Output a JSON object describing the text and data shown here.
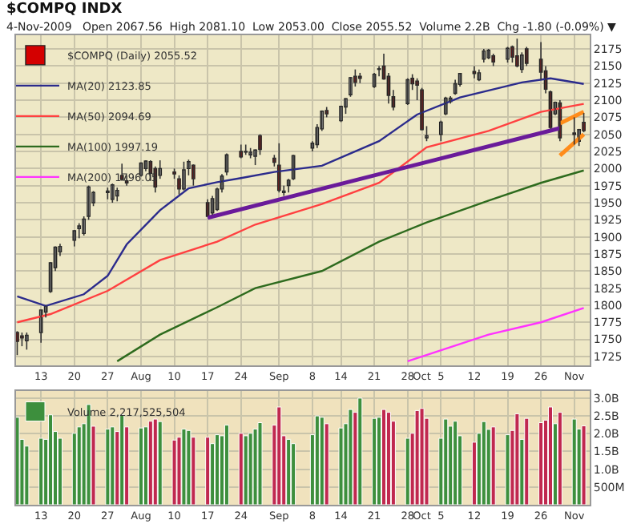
{
  "chart_data": [
    {
      "type": "candlestick",
      "title": "$COMPQ INDX",
      "subtitle": "4-Nov-2009   Open 2067.56  High 2081.10  Low 2053.00  Close 2055.52  Volume 2.2B  Chg -1.80 (-0.09%) ▼",
      "x": [
        "2009-07-08",
        "2009-07-09",
        "2009-07-10",
        "2009-07-13",
        "2009-07-14",
        "2009-07-15",
        "2009-07-16",
        "2009-07-17",
        "2009-07-20",
        "2009-07-21",
        "2009-07-22",
        "2009-07-23",
        "2009-07-24",
        "2009-07-27",
        "2009-07-28",
        "2009-07-29",
        "2009-07-30",
        "2009-07-31",
        "2009-08-03",
        "2009-08-04",
        "2009-08-05",
        "2009-08-06",
        "2009-08-07",
        "2009-08-10",
        "2009-08-11",
        "2009-08-12",
        "2009-08-13",
        "2009-08-14",
        "2009-08-17",
        "2009-08-18",
        "2009-08-19",
        "2009-08-20",
        "2009-08-21",
        "2009-08-24",
        "2009-08-25",
        "2009-08-26",
        "2009-08-27",
        "2009-08-28",
        "2009-08-31",
        "2009-09-01",
        "2009-09-02",
        "2009-09-03",
        "2009-09-04",
        "2009-09-08",
        "2009-09-09",
        "2009-09-10",
        "2009-09-11",
        "2009-09-14",
        "2009-09-15",
        "2009-09-16",
        "2009-09-17",
        "2009-09-18",
        "2009-09-21",
        "2009-09-22",
        "2009-09-23",
        "2009-09-24",
        "2009-09-25",
        "2009-09-28",
        "2009-09-29",
        "2009-09-30",
        "2009-10-01",
        "2009-10-02",
        "2009-10-05",
        "2009-10-06",
        "2009-10-07",
        "2009-10-08",
        "2009-10-09",
        "2009-10-12",
        "2009-10-13",
        "2009-10-14",
        "2009-10-15",
        "2009-10-16",
        "2009-10-19",
        "2009-10-20",
        "2009-10-21",
        "2009-10-22",
        "2009-10-23",
        "2009-10-26",
        "2009-10-27",
        "2009-10-28",
        "2009-10-29",
        "2009-10-30",
        "2009-11-02",
        "2009-11-03",
        "2009-11-04"
      ],
      "series": [
        {
          "name": "MA(20) 2123.85",
          "type": "line",
          "color": "#2b2b8c",
          "x": [
            "2009-07-08",
            "2009-07-14",
            "2009-07-22",
            "2009-07-27",
            "2009-07-31",
            "2009-08-07",
            "2009-08-13",
            "2009-08-19",
            "2009-08-24",
            "2009-08-31",
            "2009-09-10",
            "2009-09-22",
            "2009-09-30",
            "2009-10-09",
            "2009-10-22",
            "2009-10-28",
            "2009-11-04"
          ],
          "values": [
            1813,
            1799,
            1816,
            1843,
            1889,
            1939,
            1971,
            1980,
            1986,
            1995,
            2004,
            2040,
            2079,
            2104,
            2126,
            2132,
            2123.85
          ]
        },
        {
          "name": "MA(50) 2094.69",
          "type": "line",
          "color": "#ff4040",
          "x": [
            "2009-07-08",
            "2009-07-15",
            "2009-07-27",
            "2009-08-07",
            "2009-08-19",
            "2009-08-27",
            "2009-09-10",
            "2009-09-22",
            "2009-10-02",
            "2009-10-15",
            "2009-10-26",
            "2009-11-04"
          ],
          "values": [
            1775,
            1787,
            1821,
            1866,
            1893,
            1918,
            1948,
            1979,
            2031,
            2055,
            2083,
            2094.69
          ]
        },
        {
          "name": "MA(100) 1997.19",
          "type": "line",
          "color": "#2e6b1e",
          "x": [
            "2009-07-29",
            "2009-08-07",
            "2009-08-19",
            "2009-08-27",
            "2009-09-10",
            "2009-09-22",
            "2009-10-02",
            "2009-10-15",
            "2009-10-26",
            "2009-11-04"
          ],
          "values": [
            1718,
            1757,
            1797,
            1825,
            1850,
            1893,
            1921,
            1953,
            1979,
            1997.19
          ]
        },
        {
          "name": "MA(200) 1796.05",
          "type": "line",
          "color": "#ff33ff",
          "x": [
            "2009-09-28",
            "2009-10-15",
            "2009-10-26",
            "2009-11-04"
          ],
          "values": [
            1718,
            1757,
            1775,
            1796.05
          ]
        },
        {
          "type": "line",
          "color": "#6a1b9a",
          "x": [
            "2009-08-17",
            "2009-10-30"
          ],
          "values": [
            1928,
            2059
          ]
        },
        {
          "type": "line",
          "color": "#ff8c1a",
          "x": [
            "2009-10-30",
            "2009-11-04"
          ],
          "values": [
            2066,
            2083
          ]
        },
        {
          "type": "line",
          "color": "#ff8c1a",
          "x": [
            "2009-10-30",
            "2009-11-04"
          ],
          "values": [
            2019,
            2050
          ]
        },
        {
          "name": "$COMPQ (Daily) 2055.52",
          "type": "candlestick",
          "colors": [
            "#d40000",
            "#d40000",
            "#ffffff",
            "#ffffff",
            "#ffffff",
            "#ffffff",
            "#ffffff",
            "#ffffff",
            "#ffffff",
            "#ffffff",
            "#ffffff",
            "#ffffff",
            "#ffffff",
            "#ffffff",
            "#ffffff",
            "#ffffff",
            "#d40000",
            "#d40000",
            "#ffffff",
            "#ffffff",
            "#d40000",
            "#d40000",
            "#ffffff",
            "#d40000",
            "#d40000",
            "#ffffff",
            "#ffffff",
            "#d40000",
            "#d40000",
            "#ffffff",
            "#ffffff",
            "#ffffff",
            "#ffffff",
            "#d40000",
            "#d40000",
            "#ffffff",
            "#ffffff",
            "#d40000",
            "#d40000",
            "#d40000",
            "#ffffff",
            "#ffffff",
            "#ffffff",
            "#ffffff",
            "#ffffff",
            "#ffffff",
            "#d40000",
            "#ffffff",
            "#ffffff",
            "#ffffff",
            "#d40000",
            "#d40000",
            "#ffffff",
            "#ffffff",
            "#d40000",
            "#d40000",
            "#d40000",
            "#ffffff",
            "#d40000",
            "#d40000",
            "#d40000",
            "#ffffff",
            "#ffffff",
            "#ffffff",
            "#ffffff",
            "#ffffff",
            "#ffffff",
            "#d40000",
            "#ffffff",
            "#ffffff",
            "#ffffff",
            "#d40000",
            "#ffffff",
            "#d40000",
            "#d40000",
            "#ffffff",
            "#d40000",
            "#d40000",
            "#d40000",
            "#d40000",
            "#ffffff",
            "#d40000",
            "#d40000",
            "#ffffff",
            "#d40000"
          ],
          "ohlc": [
            [
              1760,
              1762,
              1727,
              1747
            ],
            [
              1755,
              1760,
              1740,
              1752
            ],
            [
              1748,
              1760,
              1735,
              1756
            ],
            [
              1760,
              1793,
              1745,
              1793
            ],
            [
              1790,
              1800,
              1782,
              1799
            ],
            [
              1820,
              1863,
              1818,
              1862
            ],
            [
              1855,
              1886,
              1850,
              1885
            ],
            [
              1878,
              1890,
              1872,
              1886
            ],
            [
              1895,
              1910,
              1886,
              1909
            ],
            [
              1912,
              1920,
              1898,
              1916
            ],
            [
              1905,
              1930,
              1902,
              1926
            ],
            [
              1930,
              1975,
              1925,
              1973
            ],
            [
              1950,
              1967,
              1945,
              1965
            ],
            [
              1965,
              1972,
              1955,
              1967
            ],
            [
              1955,
              1978,
              1950,
              1976
            ],
            [
              1960,
              1972,
              1952,
              1968
            ],
            [
              1990,
              2007,
              1982,
              1984
            ],
            [
              1982,
              1990,
              1975,
              1979
            ],
            [
              1990,
              2009,
              1988,
              2008
            ],
            [
              2000,
              2012,
              1996,
              2011
            ],
            [
              2010,
              2012,
              1982,
              1993
            ],
            [
              2000,
              2003,
              1965,
              1973
            ],
            [
              1990,
              2012,
              1985,
              2000
            ],
            [
              1995,
              2000,
              1985,
              1992
            ],
            [
              1985,
              1990,
              1962,
              1970
            ],
            [
              1970,
              2010,
              1968,
              1998
            ],
            [
              2000,
              2013,
              1990,
              2010
            ],
            [
              2005,
              2006,
              1975,
              1985
            ],
            [
              1950,
              1955,
              1930,
              1930
            ],
            [
              1935,
              1960,
              1932,
              1956
            ],
            [
              1940,
              1972,
              1938,
              1970
            ],
            [
              1970,
              1992,
              1965,
              1989
            ],
            [
              1995,
              2022,
              1990,
              2020
            ],
            [
              2025,
              2035,
              2015,
              2017
            ],
            [
              2025,
              2035,
              2020,
              2024
            ],
            [
              2020,
              2030,
              2015,
              2024
            ],
            [
              2018,
              2028,
              2005,
              2027
            ],
            [
              2048,
              2050,
              2020,
              2028
            ],
            [
              2015,
              2020,
              2003,
              2009
            ],
            [
              2005,
              2037,
              1965,
              1968
            ],
            [
              1965,
              1975,
              1960,
              1967
            ],
            [
              1975,
              1985,
              1965,
              1983
            ],
            [
              1985,
              2020,
              1983,
              2019
            ],
            [
              2030,
              2040,
              2025,
              2037
            ],
            [
              2035,
              2065,
              2030,
              2060
            ],
            [
              2058,
              2085,
              2055,
              2084
            ],
            [
              2085,
              2090,
              2075,
              2080
            ],
            [
              2070,
              2092,
              2068,
              2091
            ],
            [
              2090,
              2103,
              2080,
              2102
            ],
            [
              2108,
              2134,
              2105,
              2133
            ],
            [
              2135,
              2145,
              2120,
              2126
            ],
            [
              2135,
              2140,
              2125,
              2132
            ],
            [
              2120,
              2140,
              2118,
              2138
            ],
            [
              2145,
              2150,
              2135,
              2146
            ],
            [
              2150,
              2168,
              2130,
              2131
            ],
            [
              2135,
              2140,
              2095,
              2107
            ],
            [
              2105,
              2115,
              2085,
              2090
            ],
            [
              2095,
              2132,
              2093,
              2130
            ],
            [
              2132,
              2138,
              2115,
              2124
            ],
            [
              2128,
              2132,
              2100,
              2122
            ],
            [
              2115,
              2118,
              2056,
              2057
            ],
            [
              2045,
              2062,
              2040,
              2048
            ],
            [
              2050,
              2070,
              2040,
              2068
            ],
            [
              2080,
              2105,
              2078,
              2103
            ],
            [
              2098,
              2106,
              2095,
              2103
            ],
            [
              2110,
              2130,
              2108,
              2124
            ],
            [
              2123,
              2140,
              2120,
              2139
            ],
            [
              2142,
              2150,
              2132,
              2139
            ],
            [
              2130,
              2145,
              2128,
              2140
            ],
            [
              2160,
              2175,
              2155,
              2172
            ],
            [
              2162,
              2175,
              2160,
              2173
            ],
            [
              2165,
              2168,
              2150,
              2156
            ],
            [
              2160,
              2178,
              2155,
              2176
            ],
            [
              2178,
              2180,
              2155,
              2163
            ],
            [
              2165,
              2190,
              2148,
              2150
            ],
            [
              2145,
              2170,
              2140,
              2166
            ],
            [
              2175,
              2178,
              2150,
              2154
            ],
            [
              2160,
              2185,
              2130,
              2141
            ],
            [
              2143,
              2150,
              2110,
              2116
            ],
            [
              2112,
              2114,
              2058,
              2060
            ],
            [
              2080,
              2098,
              2078,
              2097
            ],
            [
              2096,
              2100,
              2040,
              2045
            ],
            [
              2052,
              2075,
              2035,
              2050
            ],
            [
              2040,
              2058,
              2033,
              2057
            ],
            [
              2067.56,
              2081.1,
              2053.0,
              2055.52
            ]
          ]
        }
      ],
      "xlim": [
        "2009-07-07T18:00",
        "2009-11-05T06:00"
      ],
      "xticks": [
        {
          "value": "2009-07-13",
          "label": "13"
        },
        {
          "value": "2009-07-20",
          "label": "20"
        },
        {
          "value": "2009-07-27",
          "label": "27"
        },
        {
          "value": "2009-08-03",
          "label": "Aug"
        },
        {
          "value": "2009-08-10",
          "label": "10"
        },
        {
          "value": "2009-08-17",
          "label": "17"
        },
        {
          "value": "2009-08-24",
          "label": "24"
        },
        {
          "value": "2009-09-01",
          "label": "Sep"
        },
        {
          "value": "2009-09-08",
          "label": "8"
        },
        {
          "value": "2009-09-14",
          "label": "14"
        },
        {
          "value": "2009-09-21",
          "label": "21"
        },
        {
          "value": "2009-09-28",
          "label": "28"
        },
        {
          "value": "2009-10-01",
          "label": "Oct"
        },
        {
          "value": "2009-10-05",
          "label": "5"
        },
        {
          "value": "2009-10-12",
          "label": "12"
        },
        {
          "value": "2009-10-19",
          "label": "19"
        },
        {
          "value": "2009-10-26",
          "label": "26"
        },
        {
          "value": "2009-11-02",
          "label": "Nov"
        }
      ],
      "ylim": [
        1712,
        2195
      ],
      "yticks": [
        1725,
        1750,
        1775,
        1800,
        1825,
        1850,
        1875,
        1900,
        1925,
        1950,
        1975,
        2000,
        2025,
        2050,
        2075,
        2100,
        2125,
        2150,
        2175
      ],
      "grid": true,
      "legend": "top left"
    },
    {
      "type": "bar",
      "x": [
        "2009-07-08",
        "2009-07-09",
        "2009-07-10",
        "2009-07-13",
        "2009-07-14",
        "2009-07-15",
        "2009-07-16",
        "2009-07-17",
        "2009-07-20",
        "2009-07-21",
        "2009-07-22",
        "2009-07-23",
        "2009-07-24",
        "2009-07-27",
        "2009-07-28",
        "2009-07-29",
        "2009-07-30",
        "2009-07-31",
        "2009-08-03",
        "2009-08-04",
        "2009-08-05",
        "2009-08-06",
        "2009-08-07",
        "2009-08-10",
        "2009-08-11",
        "2009-08-12",
        "2009-08-13",
        "2009-08-14",
        "2009-08-17",
        "2009-08-18",
        "2009-08-19",
        "2009-08-20",
        "2009-08-21",
        "2009-08-24",
        "2009-08-25",
        "2009-08-26",
        "2009-08-27",
        "2009-08-28",
        "2009-08-31",
        "2009-09-01",
        "2009-09-02",
        "2009-09-03",
        "2009-09-04",
        "2009-09-08",
        "2009-09-09",
        "2009-09-10",
        "2009-09-11",
        "2009-09-14",
        "2009-09-15",
        "2009-09-16",
        "2009-09-17",
        "2009-09-18",
        "2009-09-21",
        "2009-09-22",
        "2009-09-23",
        "2009-09-24",
        "2009-09-25",
        "2009-09-28",
        "2009-09-29",
        "2009-09-30",
        "2009-10-01",
        "2009-10-02",
        "2009-10-05",
        "2009-10-06",
        "2009-10-07",
        "2009-10-08",
        "2009-10-09",
        "2009-10-12",
        "2009-10-13",
        "2009-10-14",
        "2009-10-15",
        "2009-10-16",
        "2009-10-19",
        "2009-10-20",
        "2009-10-21",
        "2009-10-22",
        "2009-10-23",
        "2009-10-26",
        "2009-10-27",
        "2009-10-28",
        "2009-10-29",
        "2009-10-30",
        "2009-11-02",
        "2009-11-03",
        "2009-11-04"
      ],
      "series": [
        {
          "name": "Volume 2,217,525,504",
          "values": [
            2460000000,
            1840000000,
            1650000000,
            1870000000,
            1840000000,
            2530000000,
            2060000000,
            1870000000,
            2010000000,
            2190000000,
            2280000000,
            2820000000,
            2210000000,
            2130000000,
            2190000000,
            2060000000,
            2530000000,
            2190000000,
            2160000000,
            2190000000,
            2350000000,
            2410000000,
            2340000000,
            1820000000,
            1900000000,
            2130000000,
            2090000000,
            1900000000,
            1900000000,
            1720000000,
            1970000000,
            1940000000,
            2240000000,
            2010000000,
            1940000000,
            2010000000,
            2130000000,
            2310000000,
            2240000000,
            2750000000,
            1940000000,
            1840000000,
            1720000000,
            1970000000,
            2500000000,
            2460000000,
            2280000000,
            2160000000,
            2280000000,
            2680000000,
            2600000000,
            3000000000,
            2430000000,
            2460000000,
            2680000000,
            2600000000,
            2350000000,
            1870000000,
            2010000000,
            2650000000,
            2710000000,
            2430000000,
            1870000000,
            2410000000,
            2210000000,
            2350000000,
            1940000000,
            1760000000,
            2010000000,
            2340000000,
            2120000000,
            2190000000,
            1970000000,
            2090000000,
            2560000000,
            1840000000,
            2430000000,
            2310000000,
            2380000000,
            2750000000,
            2280000000,
            2600000000,
            2410000000,
            2130000000,
            2220000000
          ],
          "colors": [
            "#3d8f3d",
            "#3d8f3d",
            "#3d8f3d",
            "#3d8f3d",
            "#3d8f3d",
            "#3d8f3d",
            "#3d8f3d",
            "#3d8f3d",
            "#3d8f3d",
            "#3d8f3d",
            "#3d8f3d",
            "#3d8f3d",
            "#c0284f",
            "#3d8f3d",
            "#3d8f3d",
            "#c0284f",
            "#3d8f3d",
            "#c0284f",
            "#3d8f3d",
            "#3d8f3d",
            "#c0284f",
            "#c0284f",
            "#3d8f3d",
            "#c0284f",
            "#c0284f",
            "#3d8f3d",
            "#3d8f3d",
            "#c0284f",
            "#c0284f",
            "#3d8f3d",
            "#3d8f3d",
            "#3d8f3d",
            "#3d8f3d",
            "#c0284f",
            "#3d8f3d",
            "#3d8f3d",
            "#3d8f3d",
            "#3d8f3d",
            "#c0284f",
            "#c0284f",
            "#c0284f",
            "#3d8f3d",
            "#3d8f3d",
            "#3d8f3d",
            "#3d8f3d",
            "#3d8f3d",
            "#c0284f",
            "#3d8f3d",
            "#3d8f3d",
            "#3d8f3d",
            "#c0284f",
            "#3d8f3d",
            "#3d8f3d",
            "#3d8f3d",
            "#c0284f",
            "#c0284f",
            "#c0284f",
            "#3d8f3d",
            "#c0284f",
            "#c0284f",
            "#c0284f",
            "#c0284f",
            "#3d8f3d",
            "#3d8f3d",
            "#3d8f3d",
            "#3d8f3d",
            "#3d8f3d",
            "#c0284f",
            "#3d8f3d",
            "#3d8f3d",
            "#3d8f3d",
            "#c0284f",
            "#3d8f3d",
            "#c0284f",
            "#c0284f",
            "#3d8f3d",
            "#c0284f",
            "#c0284f",
            "#c0284f",
            "#c0284f",
            "#3d8f3d",
            "#c0284f",
            "#3d8f3d",
            "#3d8f3d",
            "#c0284f"
          ]
        }
      ],
      "xlim": [
        "2009-07-07T18:00",
        "2009-11-05T06:00"
      ],
      "xticks": [
        {
          "value": "2009-07-13",
          "label": "13"
        },
        {
          "value": "2009-07-20",
          "label": "20"
        },
        {
          "value": "2009-07-27",
          "label": "27"
        },
        {
          "value": "2009-08-03",
          "label": "Aug"
        },
        {
          "value": "2009-08-10",
          "label": "10"
        },
        {
          "value": "2009-08-17",
          "label": "17"
        },
        {
          "value": "2009-08-24",
          "label": "24"
        },
        {
          "value": "2009-09-01",
          "label": "Sep"
        },
        {
          "value": "2009-09-08",
          "label": "8"
        },
        {
          "value": "2009-09-14",
          "label": "14"
        },
        {
          "value": "2009-09-21",
          "label": "21"
        },
        {
          "value": "2009-09-28",
          "label": "28"
        },
        {
          "value": "2009-10-01",
          "label": "Oct"
        },
        {
          "value": "2009-10-05",
          "label": "5"
        },
        {
          "value": "2009-10-12",
          "label": "12"
        },
        {
          "value": "2009-10-19",
          "label": "19"
        },
        {
          "value": "2009-10-26",
          "label": "26"
        },
        {
          "value": "2009-11-02",
          "label": "Nov"
        }
      ],
      "ylim": [
        0,
        3200000000
      ],
      "yticks": [
        {
          "value": 500000000,
          "label": "500M"
        },
        {
          "value": 1000000000,
          "label": "1.0B"
        },
        {
          "value": 1500000000,
          "label": "1.5B"
        },
        {
          "value": 2000000000,
          "label": "2.0B"
        },
        {
          "value": 2500000000,
          "label": "2.5B"
        },
        {
          "value": 3000000000,
          "label": "3.0B"
        }
      ],
      "grid": true,
      "legend": "top left"
    }
  ]
}
